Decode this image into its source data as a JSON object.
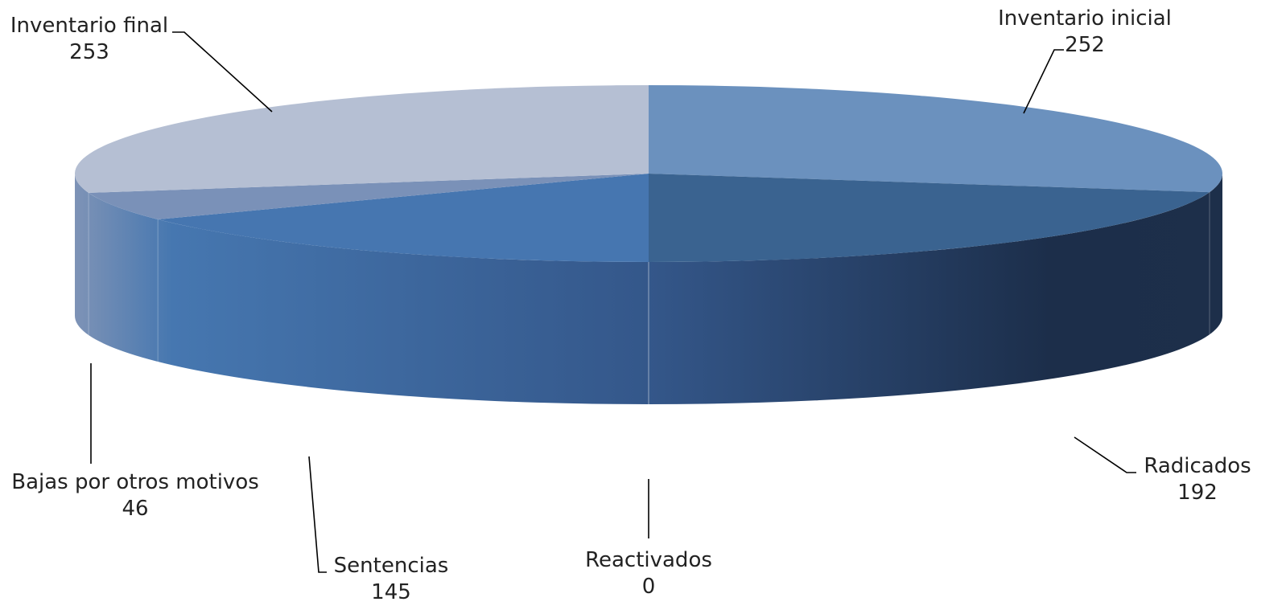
{
  "chart_data": {
    "type": "pie",
    "style": "3d",
    "categories": [
      "Inventario inicial",
      "Radicados",
      "Reactivados",
      "Sentencias",
      "Bajas por otros motivos",
      "Inventario final"
    ],
    "values": [
      252,
      192,
      0,
      145,
      46,
      253
    ],
    "labels": [
      "252",
      "192",
      "0",
      "145",
      "46",
      "253"
    ],
    "colors": [
      "#6b91be",
      "#3a6390",
      "#5b7fb0",
      "#4676b0",
      "#7a91b8",
      "#b5bfd3"
    ],
    "title": "",
    "legend": "none"
  }
}
